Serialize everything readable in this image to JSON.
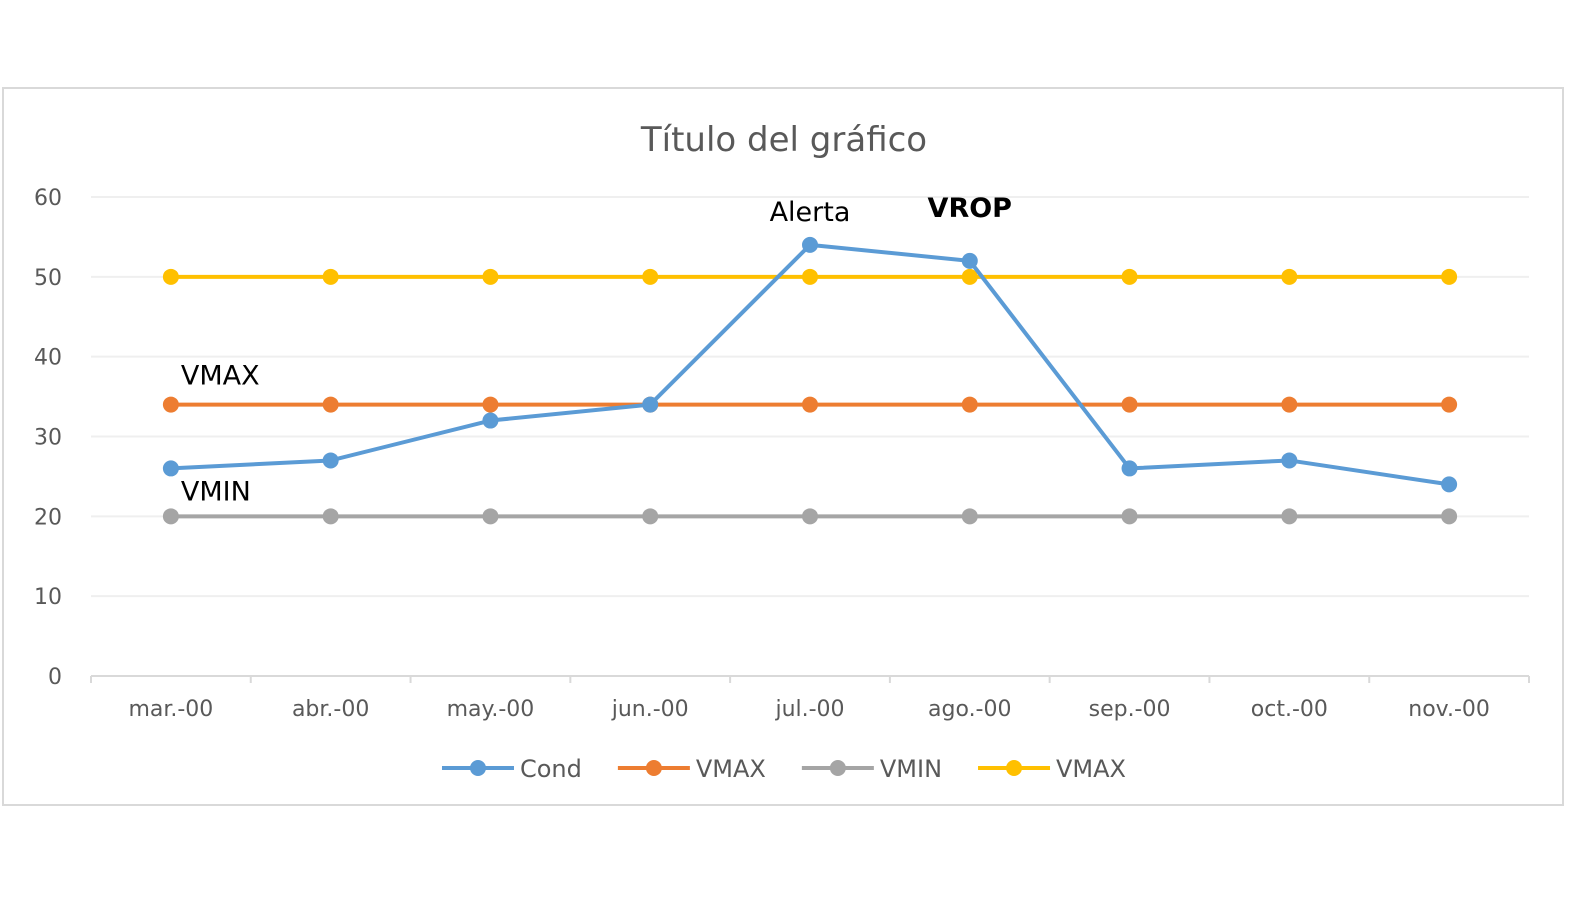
{
  "chart_data": {
    "type": "line",
    "title": "Título del gráfico",
    "xlabel": "",
    "ylabel": "",
    "categories": [
      "mar.-00",
      "abr.-00",
      "may.-00",
      "jun.-00",
      "jul.-00",
      "ago.-00",
      "sep.-00",
      "oct.-00",
      "nov.-00"
    ],
    "ylim": [
      0,
      60
    ],
    "yticks": [
      0,
      10,
      20,
      30,
      40,
      50,
      60
    ],
    "grid": true,
    "legend_position": "bottom",
    "series": [
      {
        "name": "Cond",
        "color": "#5B9BD5",
        "values": [
          26,
          27,
          32,
          34,
          54,
          52,
          26,
          27,
          24
        ]
      },
      {
        "name": "VMAX",
        "color": "#ED7D31",
        "values": [
          34,
          34,
          34,
          34,
          34,
          34,
          34,
          34,
          34
        ]
      },
      {
        "name": "VMIN",
        "color": "#A5A5A5",
        "values": [
          20,
          20,
          20,
          20,
          20,
          20,
          20,
          20,
          20
        ]
      },
      {
        "name": "VMAX",
        "color": "#FFC000",
        "values": [
          50,
          50,
          50,
          50,
          50,
          50,
          50,
          50,
          50
        ]
      }
    ],
    "annotations": [
      {
        "text": "Alerta",
        "category": "jul.-00",
        "y": 57,
        "bold": false
      },
      {
        "text": "VROP",
        "category": "ago.-00",
        "y": 57.5,
        "bold": true
      },
      {
        "text": "VMAX",
        "category": "mar.-00",
        "y": 36.5,
        "bold": false
      },
      {
        "text": "VMIN",
        "category": "mar.-00",
        "y": 22,
        "bold": false
      }
    ]
  }
}
